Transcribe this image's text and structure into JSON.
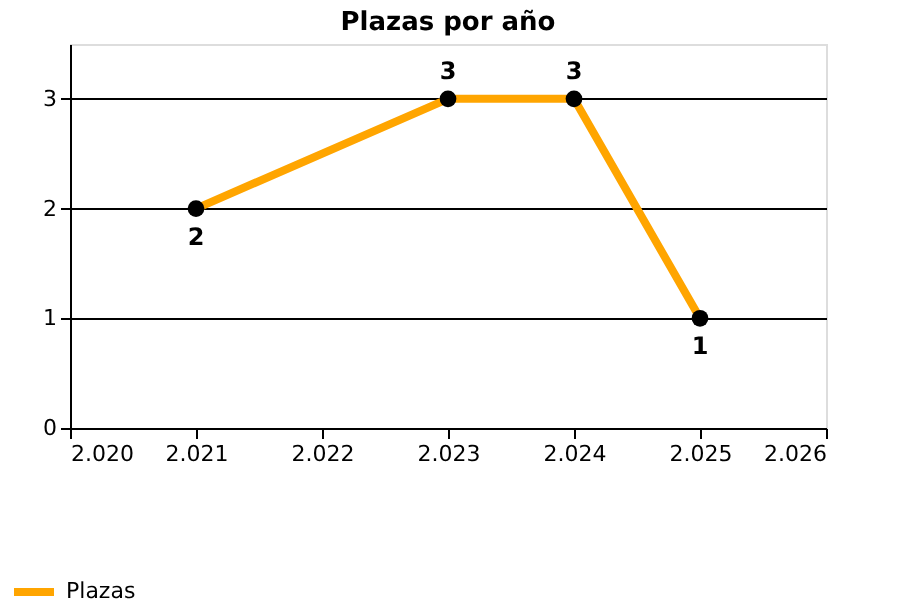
{
  "chart_data": {
    "type": "line",
    "title": "Plazas por año",
    "x": [
      2021,
      2023,
      2024,
      2025
    ],
    "series": [
      {
        "name": "Plazas",
        "color": "#ffa500",
        "values": [
          2,
          3,
          3,
          1
        ]
      }
    ],
    "xlim": [
      2020,
      2026
    ],
    "xticks": [
      {
        "value": 2020,
        "label": "2.020"
      },
      {
        "value": 2021,
        "label": "2.021"
      },
      {
        "value": 2022,
        "label": "2.022"
      },
      {
        "value": 2023,
        "label": "2.023"
      },
      {
        "value": 2024,
        "label": "2.024"
      },
      {
        "value": 2025,
        "label": "2.025"
      },
      {
        "value": 2026,
        "label": "2.026"
      }
    ],
    "ylim": [
      0,
      3.5
    ],
    "yticks": [
      0,
      1,
      2,
      3
    ],
    "grid": "y",
    "legend": "bottom left",
    "marker": "circle",
    "line_style": "solid",
    "data_labels": true
  }
}
